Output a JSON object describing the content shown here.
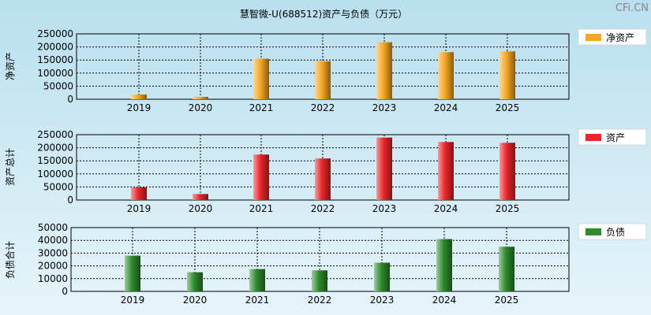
{
  "title": "慧智微-U(688512)资产与负债（万元）",
  "watermark": "CFi.CN",
  "chart_data": [
    {
      "type": "bar",
      "ylabel": "净资产",
      "legend": "净资产",
      "color": "#f5a623",
      "categories": [
        "2019",
        "2020",
        "2021",
        "2022",
        "2023",
        "2024",
        "2025"
      ],
      "values": [
        18000,
        9000,
        155000,
        145000,
        218000,
        180000,
        183000
      ],
      "ylim": [
        0,
        250000
      ],
      "yticks": [
        0,
        50000,
        100000,
        150000,
        200000,
        250000
      ],
      "legend_position": "right",
      "grid": true
    },
    {
      "type": "bar",
      "ylabel": "资产总计",
      "legend": "资产",
      "color": "#e8262b",
      "categories": [
        "2019",
        "2020",
        "2021",
        "2022",
        "2023",
        "2024",
        "2025"
      ],
      "values": [
        49000,
        23000,
        174000,
        159000,
        239000,
        222000,
        219000
      ],
      "ylim": [
        0,
        250000
      ],
      "yticks": [
        0,
        50000,
        100000,
        150000,
        200000,
        250000
      ],
      "legend_position": "right",
      "grid": true
    },
    {
      "type": "bar",
      "ylabel": "负债合计",
      "legend": "负债",
      "color": "#2e8b2e",
      "categories": [
        "2019",
        "2020",
        "2021",
        "2022",
        "2023",
        "2024",
        "2025"
      ],
      "values": [
        28000,
        15000,
        17500,
        16500,
        22500,
        41000,
        35000
      ],
      "ylim": [
        0,
        50000
      ],
      "yticks": [
        0,
        10000,
        20000,
        30000,
        40000,
        50000
      ],
      "legend_position": "right",
      "grid": true
    }
  ]
}
